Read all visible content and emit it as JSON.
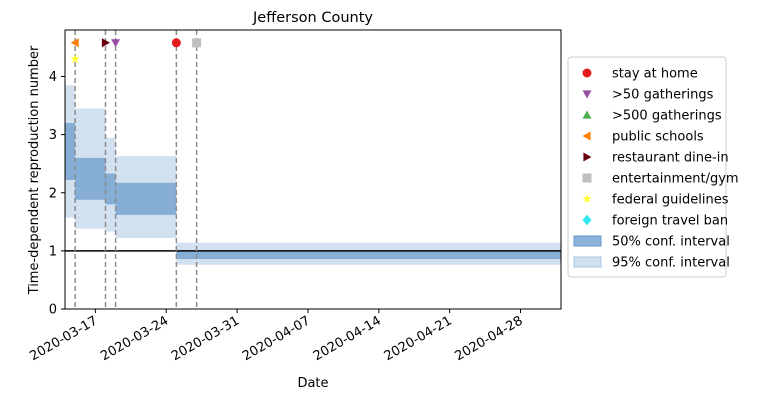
{
  "chart_data": {
    "type": "area",
    "title": "Jefferson County",
    "xlabel": "Date",
    "ylabel": "Time-dependent reproduction number",
    "x_range": [
      "2020-03-14",
      "2020-05-02"
    ],
    "ylim": [
      0,
      4.8
    ],
    "y_ticks": [
      0,
      1,
      2,
      3,
      4
    ],
    "x_ticks": [
      "2020-03-17",
      "2020-03-24",
      "2020-03-31",
      "2020-04-07",
      "2020-04-14",
      "2020-04-21",
      "2020-04-28"
    ],
    "grid": false,
    "legend_position": "right",
    "reference_line": {
      "y": 1,
      "color": "#000000"
    },
    "colors": {
      "ci50": "#6699cc",
      "ci95": "#a6c4e0",
      "vline": "#8c8c8c"
    },
    "intervals": [
      {
        "start": "2020-03-14",
        "end": "2020-03-15",
        "ci50": [
          2.22,
          3.2
        ],
        "ci95": [
          1.57,
          3.85
        ]
      },
      {
        "start": "2020-03-15",
        "end": "2020-03-18",
        "ci50": [
          1.88,
          2.6
        ],
        "ci95": [
          1.38,
          3.45
        ]
      },
      {
        "start": "2020-03-18",
        "end": "2020-03-19",
        "ci50": [
          1.8,
          2.33
        ],
        "ci95": [
          1.33,
          2.95
        ]
      },
      {
        "start": "2020-03-19",
        "end": "2020-03-25",
        "ci50": [
          1.62,
          2.17
        ],
        "ci95": [
          1.22,
          2.63
        ]
      },
      {
        "start": "2020-03-25",
        "end": "2020-05-02",
        "ci50": [
          0.86,
          1.0
        ],
        "ci95": [
          0.76,
          1.14
        ]
      }
    ],
    "interventions": [
      {
        "label": "stay at home",
        "date": "2020-03-25",
        "y": 4.58,
        "marker": "circle",
        "color": "#e41a1c"
      },
      {
        "label": ">50 gatherings",
        "date": "2020-03-19",
        "y": 4.58,
        "marker": "triangle-down",
        "color": "#984ea3"
      },
      {
        "label": ">500 gatherings",
        "date": null,
        "marker": "triangle-up",
        "color": "#4daf4a"
      },
      {
        "label": "public schools",
        "date": "2020-03-15",
        "y": 4.58,
        "marker": "triangle-left",
        "color": "#ff7f00"
      },
      {
        "label": "restaurant dine-in",
        "date": "2020-03-18",
        "y": 4.58,
        "marker": "triangle-right",
        "color": "#67000d"
      },
      {
        "label": "entertainment/gym",
        "date": "2020-03-27",
        "y": 4.58,
        "marker": "square",
        "color": "#bfbfbf"
      },
      {
        "label": "federal guidelines",
        "date": "2020-03-15",
        "y": 4.3,
        "marker": "star",
        "color": "#ffff33"
      },
      {
        "label": "foreign travel ban",
        "date": null,
        "marker": "diamond",
        "color": "#33e8f0"
      }
    ],
    "vertical_lines": [
      "2020-03-15",
      "2020-03-18",
      "2020-03-19",
      "2020-03-25",
      "2020-03-27"
    ],
    "legend": [
      {
        "label": "stay at home",
        "marker": "circle",
        "color": "#e41a1c"
      },
      {
        "label": ">50 gatherings",
        "marker": "triangle-down",
        "color": "#984ea3"
      },
      {
        "label": ">500 gatherings",
        "marker": "triangle-up",
        "color": "#4daf4a"
      },
      {
        "label": "public schools",
        "marker": "triangle-left",
        "color": "#ff7f00"
      },
      {
        "label": "restaurant dine-in",
        "marker": "triangle-right",
        "color": "#67000d"
      },
      {
        "label": "entertainment/gym",
        "marker": "square",
        "color": "#bfbfbf"
      },
      {
        "label": "federal guidelines",
        "marker": "star",
        "color": "#ffff33"
      },
      {
        "label": "foreign travel ban",
        "marker": "diamond",
        "color": "#33e8f0"
      },
      {
        "label": "50% conf. interval",
        "marker": "patch50",
        "color": "#6699cc"
      },
      {
        "label": "95% conf. interval",
        "marker": "patch95",
        "color": "#a6c4e0"
      }
    ]
  }
}
